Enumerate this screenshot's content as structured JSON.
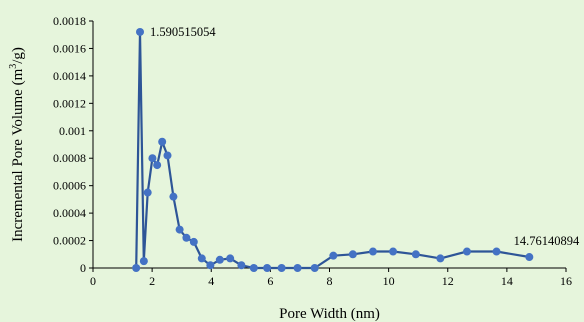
{
  "chart_data": {
    "type": "line",
    "title": "",
    "xlabel": "Pore Width (nm)",
    "ylabel_main": "Incremental Pore Volume (m",
    "ylabel_sup": "3",
    "ylabel_tail": "/g)",
    "xlim": [
      0,
      16
    ],
    "ylim": [
      0,
      0.0018
    ],
    "x_ticks": [
      0,
      2,
      4,
      6,
      8,
      10,
      12,
      14,
      16
    ],
    "x_tick_labels": [
      "0",
      "2",
      "4",
      "6",
      "8",
      "10",
      "12",
      "14",
      "16"
    ],
    "y_ticks": [
      0,
      0.0002,
      0.0004,
      0.0006,
      0.0008,
      0.001,
      0.0012,
      0.0014,
      0.0016,
      0.0018
    ],
    "y_tick_labels": [
      "0",
      "0.0002",
      "0.0004",
      "0.0006",
      "0.0008",
      "0.001",
      "0.0012",
      "0.0014",
      "0.0016",
      "0.0018"
    ],
    "grid": false,
    "legend": "none",
    "series_color": "#2e5597",
    "marker_color": "#4472c4",
    "series": [
      {
        "x": [
          1.46,
          1.59,
          1.72,
          1.85,
          2.01,
          2.17,
          2.34,
          2.52,
          2.72,
          2.93,
          3.16,
          3.41,
          3.68,
          3.97,
          4.29,
          4.64,
          5.02,
          5.44,
          5.89,
          6.38,
          6.92,
          7.5,
          8.13,
          8.79,
          9.47,
          10.15,
          10.92,
          11.75,
          12.65,
          13.65,
          14.76
        ],
        "y": [
          0,
          0.00172,
          5e-05,
          0.00055,
          0.0008,
          0.00075,
          0.00092,
          0.00082,
          0.00052,
          0.00028,
          0.00022,
          0.00019,
          7e-05,
          2e-05,
          6e-05,
          7e-05,
          2e-05,
          0,
          0,
          0,
          0,
          0,
          9e-05,
          0.0001,
          0.00012,
          0.00012,
          0.0001,
          7e-05,
          0.00012,
          0.00012,
          8e-05
        ]
      }
    ],
    "annotations": [
      {
        "text": "1.590515054",
        "x": 1.59,
        "y": 0.00172
      },
      {
        "text": "14.76140894",
        "x": 14.76,
        "y": 8e-05
      }
    ]
  }
}
